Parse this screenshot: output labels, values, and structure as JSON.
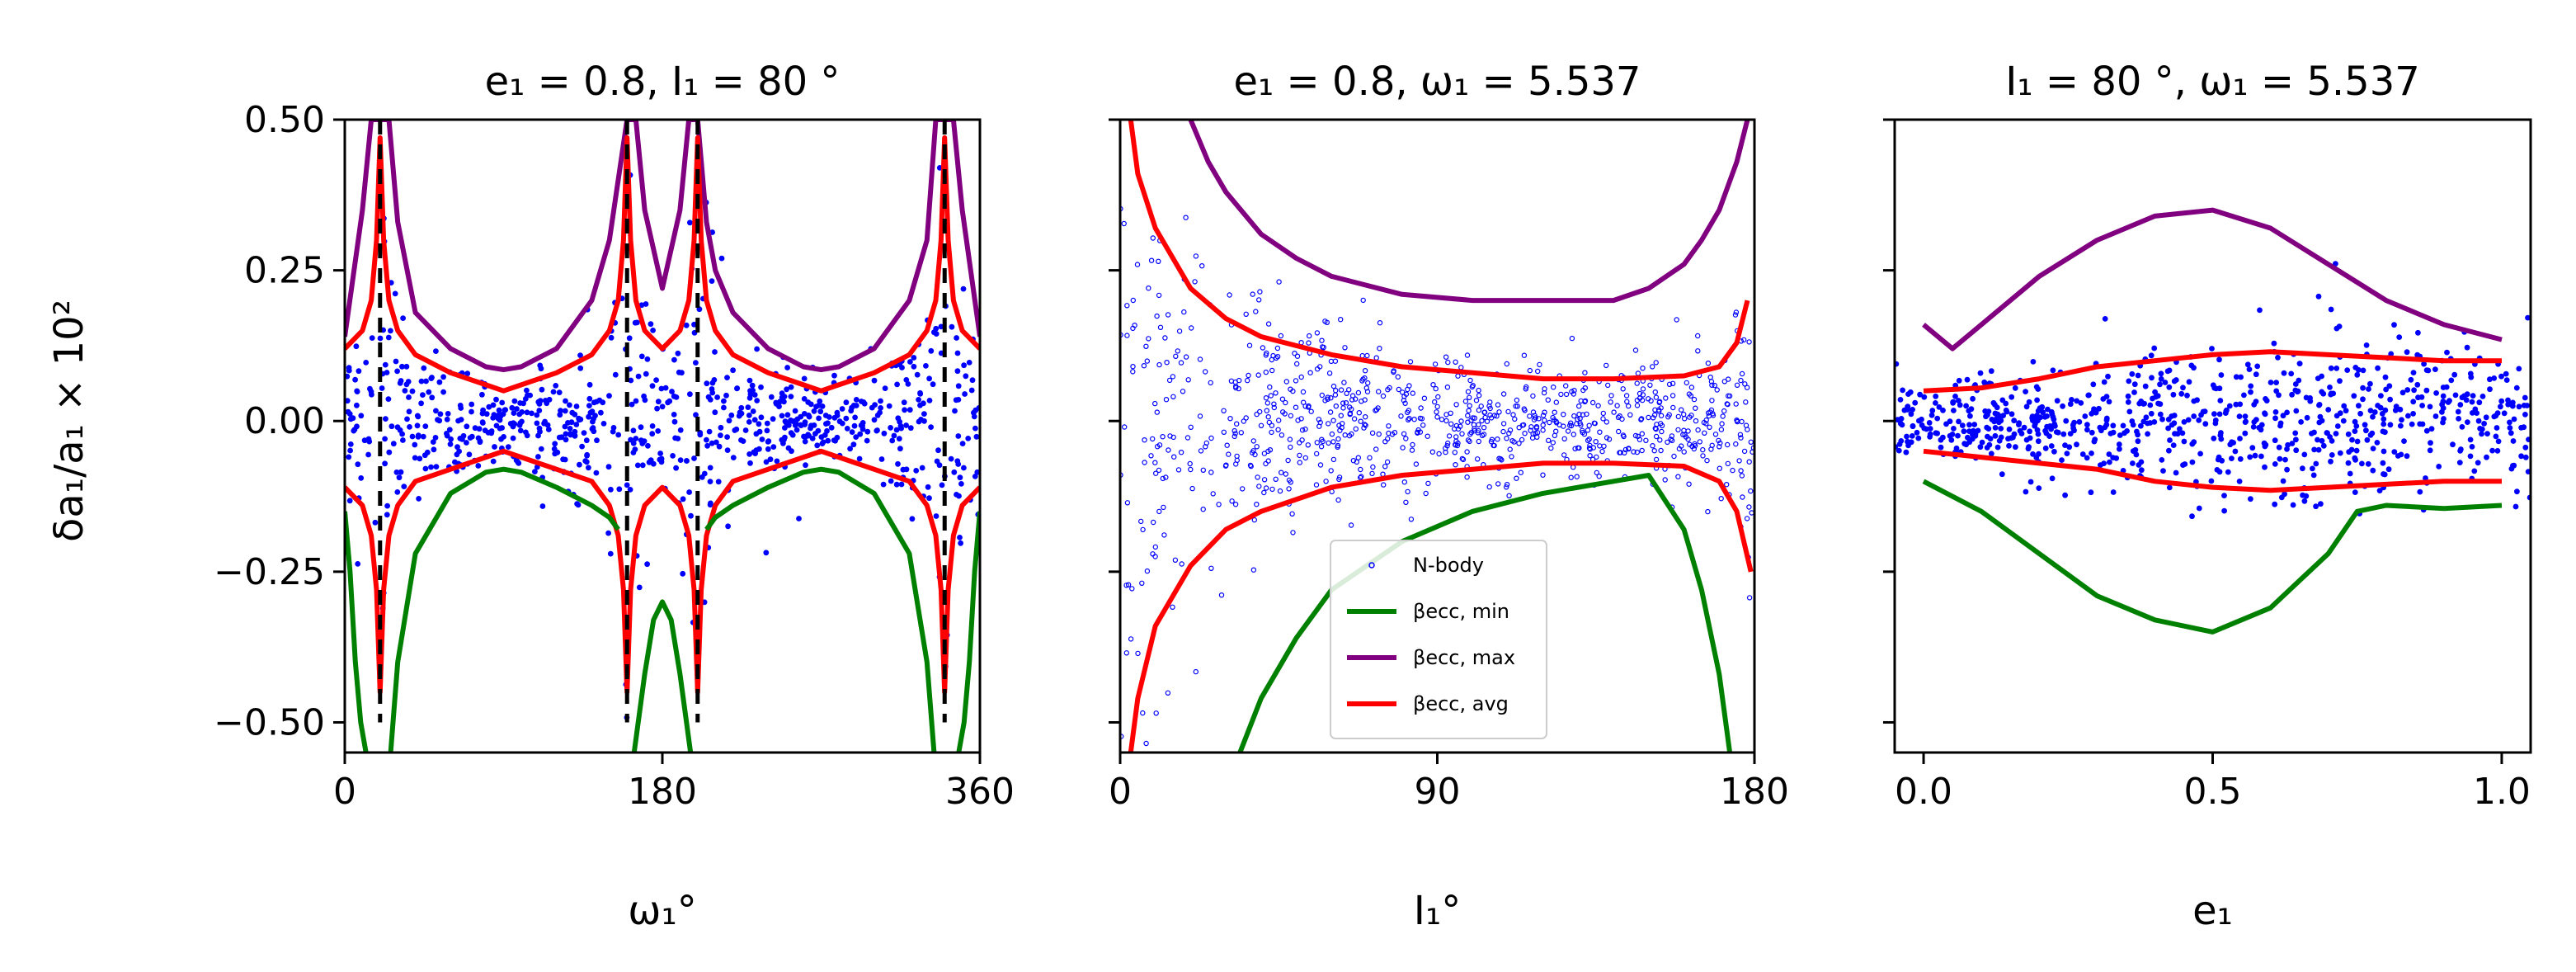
{
  "figure": {
    "ylabel": "δa₁/a₁ × 10²"
  },
  "chart_data": [
    {
      "type": "scatter",
      "title": "e₁ = 0.8, I₁ = 80 °",
      "xlabel": "ω₁°",
      "ylabel": "δa₁/a₁ × 10²",
      "xlim": [
        0,
        360
      ],
      "ylim": [
        -0.55,
        0.5
      ],
      "xticks": [
        0,
        180,
        360
      ],
      "xtick_labels": [
        "0",
        "180",
        "360"
      ],
      "yticks": [
        -0.5,
        -0.25,
        0.0,
        0.25,
        0.5
      ],
      "ytick_labels": [
        "−0.50",
        "−0.25",
        "0.00",
        "0.25",
        "0.50"
      ],
      "colors": {
        "nbody": "#0000ff",
        "min": "#008000",
        "max": "#800080",
        "avg": "#ff0000",
        "vline": "#000000"
      },
      "vlines": [
        20,
        160,
        200,
        340
      ],
      "series": [
        {
          "key": "max",
          "x": [
            0,
            10,
            15,
            20,
            25,
            30,
            40,
            60,
            80,
            90,
            100,
            120,
            140,
            150,
            160,
            165,
            170,
            180,
            190,
            195,
            200,
            205,
            210,
            220,
            240,
            260,
            270,
            280,
            300,
            320,
            330,
            335,
            340,
            345,
            350,
            360
          ],
          "values": [
            0.14,
            0.35,
            0.5,
            0.5,
            0.5,
            0.33,
            0.18,
            0.12,
            0.09,
            0.085,
            0.09,
            0.12,
            0.2,
            0.3,
            0.5,
            0.5,
            0.35,
            0.22,
            0.35,
            0.5,
            0.5,
            0.33,
            0.25,
            0.18,
            0.12,
            0.09,
            0.085,
            0.09,
            0.12,
            0.2,
            0.3,
            0.5,
            0.5,
            0.5,
            0.35,
            0.14
          ]
        },
        {
          "key": "avg_upper",
          "x": [
            0,
            10,
            15,
            18,
            20,
            22,
            25,
            30,
            40,
            60,
            80,
            90,
            100,
            120,
            140,
            150,
            155,
            158,
            160,
            162,
            165,
            170,
            180,
            190,
            195,
            198,
            200,
            202,
            205,
            210,
            220,
            240,
            260,
            270,
            280,
            300,
            320,
            330,
            335,
            338,
            340,
            342,
            345,
            350,
            360
          ],
          "values": [
            0.12,
            0.15,
            0.2,
            0.3,
            0.47,
            0.3,
            0.2,
            0.15,
            0.11,
            0.08,
            0.06,
            0.05,
            0.06,
            0.08,
            0.11,
            0.15,
            0.2,
            0.3,
            0.47,
            0.3,
            0.2,
            0.15,
            0.12,
            0.15,
            0.2,
            0.3,
            0.47,
            0.3,
            0.2,
            0.15,
            0.11,
            0.08,
            0.06,
            0.05,
            0.06,
            0.08,
            0.11,
            0.15,
            0.2,
            0.3,
            0.47,
            0.3,
            0.2,
            0.15,
            0.12
          ]
        },
        {
          "key": "avg_lower",
          "x": [
            0,
            10,
            15,
            18,
            20,
            22,
            25,
            30,
            40,
            60,
            80,
            90,
            100,
            120,
            140,
            150,
            155,
            158,
            160,
            162,
            165,
            170,
            180,
            190,
            195,
            198,
            200,
            202,
            205,
            210,
            220,
            240,
            260,
            270,
            280,
            300,
            320,
            330,
            335,
            338,
            340,
            342,
            345,
            350,
            360
          ],
          "values": [
            -0.11,
            -0.14,
            -0.19,
            -0.28,
            -0.45,
            -0.28,
            -0.19,
            -0.14,
            -0.1,
            -0.08,
            -0.06,
            -0.05,
            -0.06,
            -0.08,
            -0.1,
            -0.14,
            -0.19,
            -0.28,
            -0.45,
            -0.28,
            -0.19,
            -0.14,
            -0.11,
            -0.14,
            -0.19,
            -0.28,
            -0.45,
            -0.28,
            -0.19,
            -0.14,
            -0.1,
            -0.08,
            -0.06,
            -0.05,
            -0.06,
            -0.08,
            -0.1,
            -0.14,
            -0.19,
            -0.28,
            -0.45,
            -0.28,
            -0.19,
            -0.14,
            -0.11
          ]
        },
        {
          "key": "min_a",
          "x": [
            0,
            3,
            6,
            9,
            12
          ],
          "values": [
            -0.15,
            -0.25,
            -0.4,
            -0.5,
            -0.55
          ]
        },
        {
          "key": "min_b",
          "x": [
            26,
            30,
            40,
            60,
            80,
            90,
            100,
            120,
            140,
            150,
            155
          ],
          "values": [
            -0.55,
            -0.4,
            -0.22,
            -0.12,
            -0.085,
            -0.08,
            -0.085,
            -0.11,
            -0.14,
            -0.16,
            -0.18
          ]
        },
        {
          "key": "min_c",
          "x": [
            164,
            170,
            175,
            180,
            185,
            190,
            196
          ],
          "values": [
            -0.55,
            -0.42,
            -0.33,
            -0.3,
            -0.33,
            -0.42,
            -0.55
          ]
        },
        {
          "key": "min_d",
          "x": [
            205,
            210,
            220,
            240,
            260,
            270,
            280,
            300,
            320,
            330,
            334
          ],
          "values": [
            -0.18,
            -0.16,
            -0.14,
            -0.11,
            -0.085,
            -0.08,
            -0.085,
            -0.12,
            -0.22,
            -0.4,
            -0.55
          ]
        },
        {
          "key": "min_e",
          "x": [
            348,
            351,
            354,
            357,
            360
          ],
          "values": [
            -0.55,
            -0.5,
            -0.4,
            -0.25,
            -0.15
          ]
        }
      ]
    },
    {
      "type": "scatter",
      "title": "e₁ = 0.8, ω₁ = 5.537",
      "xlabel": "I₁°",
      "xlim": [
        0,
        180
      ],
      "ylim": [
        -0.55,
        0.5
      ],
      "xticks": [
        0,
        90,
        180
      ],
      "xtick_labels": [
        "0",
        "90",
        "180"
      ],
      "yticks": [
        -0.5,
        -0.25,
        0.0,
        0.25,
        0.5
      ],
      "colors": {
        "nbody": "#0000ff",
        "min": "#008000",
        "max": "#800080",
        "avg": "#ff0000"
      },
      "legend": {
        "placement": "lower-center",
        "entries": [
          {
            "label": "N-body",
            "marker": "dot",
            "color": "#0000ff"
          },
          {
            "label": "βecc, min",
            "marker": "line",
            "color": "#008000"
          },
          {
            "label": "βecc, max",
            "marker": "line",
            "color": "#800080"
          },
          {
            "label": "βecc, avg",
            "marker": "line",
            "color": "#ff0000"
          }
        ]
      },
      "series": [
        {
          "key": "max",
          "x": [
            20,
            25,
            30,
            40,
            50,
            60,
            80,
            100,
            120,
            140,
            150,
            160,
            165,
            170,
            175,
            178
          ],
          "values": [
            0.5,
            0.43,
            0.38,
            0.31,
            0.27,
            0.24,
            0.21,
            0.2,
            0.2,
            0.2,
            0.22,
            0.26,
            0.3,
            0.35,
            0.43,
            0.5
          ]
        },
        {
          "key": "avg_upper",
          "x": [
            3,
            5,
            10,
            20,
            30,
            40,
            60,
            80,
            100,
            120,
            140,
            160,
            170,
            175,
            178
          ],
          "values": [
            0.5,
            0.41,
            0.32,
            0.22,
            0.17,
            0.14,
            0.11,
            0.09,
            0.08,
            0.07,
            0.07,
            0.075,
            0.09,
            0.13,
            0.2
          ]
        },
        {
          "key": "avg_lower",
          "x": [
            3,
            5,
            10,
            20,
            30,
            40,
            60,
            80,
            100,
            120,
            140,
            160,
            170,
            175,
            179
          ],
          "values": [
            -0.55,
            -0.46,
            -0.34,
            -0.24,
            -0.18,
            -0.15,
            -0.11,
            -0.09,
            -0.08,
            -0.07,
            -0.07,
            -0.075,
            -0.1,
            -0.15,
            -0.25
          ]
        },
        {
          "key": "min",
          "x": [
            34,
            40,
            50,
            60,
            80,
            100,
            120,
            140,
            150,
            160,
            165,
            170,
            173
          ],
          "values": [
            -0.55,
            -0.46,
            -0.36,
            -0.28,
            -0.2,
            -0.15,
            -0.12,
            -0.1,
            -0.09,
            -0.18,
            -0.28,
            -0.42,
            -0.55
          ]
        }
      ]
    },
    {
      "type": "scatter",
      "title": "I₁ = 80 °, ω₁ = 5.537",
      "xlabel": "e₁",
      "xlim": [
        -0.05,
        1.05
      ],
      "ylim": [
        -0.55,
        0.5
      ],
      "xticks": [
        0.0,
        0.5,
        1.0
      ],
      "xtick_labels": [
        "0.0",
        "0.5",
        "1.0"
      ],
      "yticks": [
        -0.5,
        -0.25,
        0.0,
        0.25,
        0.5
      ],
      "colors": {
        "nbody": "#0000ff",
        "min": "#008000",
        "max": "#800080",
        "avg": "#ff0000"
      },
      "series": [
        {
          "key": "max",
          "x": [
            0.0,
            0.05,
            0.1,
            0.2,
            0.3,
            0.4,
            0.5,
            0.6,
            0.7,
            0.8,
            0.9,
            1.0
          ],
          "values": [
            0.16,
            0.12,
            0.16,
            0.24,
            0.3,
            0.34,
            0.35,
            0.32,
            0.26,
            0.2,
            0.16,
            0.135
          ]
        },
        {
          "key": "avg_upper",
          "x": [
            0.0,
            0.1,
            0.2,
            0.3,
            0.4,
            0.5,
            0.6,
            0.7,
            0.8,
            0.9,
            1.0
          ],
          "values": [
            0.05,
            0.055,
            0.07,
            0.09,
            0.1,
            0.11,
            0.115,
            0.11,
            0.105,
            0.1,
            0.1
          ]
        },
        {
          "key": "avg_lower",
          "x": [
            0.0,
            0.1,
            0.2,
            0.3,
            0.4,
            0.5,
            0.6,
            0.7,
            0.8,
            0.9,
            1.0
          ],
          "values": [
            -0.05,
            -0.06,
            -0.07,
            -0.08,
            -0.1,
            -0.11,
            -0.115,
            -0.11,
            -0.105,
            -0.1,
            -0.1
          ]
        },
        {
          "key": "min",
          "x": [
            0.0,
            0.1,
            0.2,
            0.3,
            0.4,
            0.5,
            0.6,
            0.7,
            0.75,
            0.8,
            0.9,
            1.0
          ],
          "values": [
            -0.1,
            -0.15,
            -0.22,
            -0.29,
            -0.33,
            -0.35,
            -0.31,
            -0.22,
            -0.15,
            -0.14,
            -0.145,
            -0.14
          ]
        }
      ]
    }
  ]
}
